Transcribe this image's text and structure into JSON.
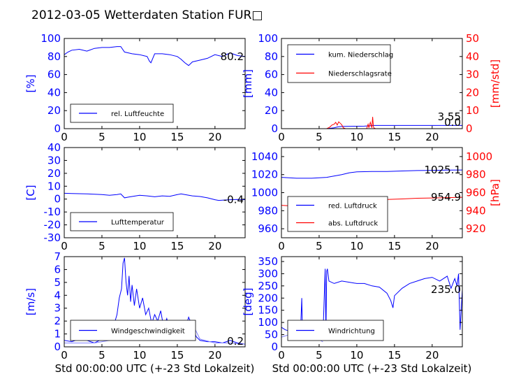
{
  "title": "2012-03-05 Wetterdaten Station FUR□",
  "colors": {
    "primary": "#0000ff",
    "secondary": "#ff0000",
    "secondary_light": "#8080ff",
    "frame": "#000000"
  },
  "chart_data": [
    {
      "id": "humidity",
      "type": "line",
      "xlabel": "",
      "ylabel": "[%]",
      "xlim": [
        0,
        24
      ],
      "ylim": [
        0,
        100
      ],
      "xticks": [
        0,
        5,
        10,
        15,
        20
      ],
      "yticks": [
        0,
        20,
        40,
        60,
        80,
        100
      ],
      "last_value_label": "80.2",
      "legend_position": "lower-left",
      "series": [
        {
          "name": "rel. Luftfeuchte",
          "color": "#0000ff",
          "x": [
            0,
            0.5,
            1,
            2,
            3,
            4,
            5,
            6,
            7,
            7.5,
            8,
            8.5,
            9,
            10,
            10.5,
            11,
            11.3,
            11.5,
            12,
            13,
            14,
            15,
            15.5,
            16,
            16.5,
            17,
            18,
            19,
            20,
            21,
            22,
            23,
            24
          ],
          "y": [
            82,
            85,
            87,
            88,
            86,
            89,
            90,
            90,
            91,
            91,
            85,
            84,
            83,
            82,
            81,
            80,
            75,
            73,
            83,
            83,
            82,
            80,
            77,
            73,
            70,
            74,
            76,
            78,
            82,
            80,
            84,
            81,
            80
          ]
        }
      ]
    },
    {
      "id": "precipitation",
      "type": "line",
      "xlabel": "",
      "ylabel": "[mm]",
      "y2label": "[mm/std]",
      "xlim": [
        0,
        24
      ],
      "ylim": [
        0,
        100
      ],
      "y2lim": [
        0,
        50
      ],
      "xticks": [
        0,
        5,
        10,
        15,
        20
      ],
      "yticks": [
        0,
        20,
        40,
        60,
        80,
        100
      ],
      "y2ticks": [
        0,
        10,
        20,
        30,
        40,
        50
      ],
      "last_value_labels": [
        "3.55",
        "0.0"
      ],
      "legend_position": "upper-left",
      "series": [
        {
          "name": "kum. Niederschlag",
          "color": "#0000ff",
          "axis": "left",
          "x": [
            0,
            6,
            7,
            7.5,
            8,
            11,
            11.7,
            12.2,
            24
          ],
          "y": [
            0,
            0,
            1,
            2,
            2.5,
            2.8,
            3.2,
            3.55,
            3.55
          ]
        },
        {
          "name": "Niederschlagsrate",
          "color": "#ff0000",
          "axis": "right",
          "x": [
            0,
            6.0,
            6.4,
            6.7,
            7.0,
            7.2,
            7.4,
            7.6,
            7.8,
            8.0,
            8.2,
            8.5,
            11.3,
            11.5,
            11.6,
            11.8,
            12.0,
            12.1,
            12.2,
            12.3,
            12.5,
            24
          ],
          "y": [
            0,
            0,
            0.8,
            2.0,
            2.5,
            3.5,
            2.0,
            3.8,
            3.0,
            2.2,
            0.5,
            0,
            0,
            2.5,
            0.5,
            3.5,
            0.5,
            6.5,
            1.0,
            0.3,
            0,
            0
          ]
        }
      ]
    },
    {
      "id": "temperature",
      "type": "line",
      "xlabel": "",
      "ylabel": "[C]",
      "xlim": [
        0,
        24
      ],
      "ylim": [
        -30,
        40
      ],
      "xticks": [
        0,
        5,
        10,
        15,
        20
      ],
      "yticks": [
        -30,
        -20,
        -10,
        0,
        10,
        20,
        30,
        40
      ],
      "last_value_label": "-0.4",
      "legend_position": "lower-left",
      "series": [
        {
          "name": "Lufttemperatur",
          "color": "#0000ff",
          "x": [
            0,
            1,
            2,
            3,
            4,
            5,
            6,
            7,
            7.5,
            8,
            8.5,
            9,
            10,
            11,
            12,
            13,
            14,
            15,
            15.5,
            16,
            17,
            18,
            19,
            20,
            20.5,
            21,
            22,
            23,
            24
          ],
          "y": [
            4.5,
            4.3,
            4.2,
            4.0,
            3.8,
            3.5,
            3.0,
            3.5,
            4.0,
            1.0,
            1.5,
            2.0,
            3.0,
            2.5,
            1.8,
            2.5,
            2.2,
            3.5,
            4.0,
            3.5,
            2.5,
            2.0,
            1.0,
            -0.5,
            -1.0,
            -0.8,
            -0.5,
            -0.3,
            -0.4
          ]
        }
      ]
    },
    {
      "id": "pressure",
      "type": "line",
      "xlabel": "",
      "ylabel": "",
      "y2label": "[hPa]",
      "xlim": [
        0,
        24
      ],
      "ylim": [
        950,
        1050
      ],
      "y2lim": [
        910,
        1010
      ],
      "xticks": [
        0,
        5,
        10,
        15,
        20
      ],
      "yticks": [
        960,
        980,
        1000,
        1020,
        1040
      ],
      "y2ticks": [
        920,
        940,
        960,
        980,
        1000
      ],
      "last_value_labels": [
        "1025.1",
        "954.9"
      ],
      "legend_position": "lower-left",
      "series": [
        {
          "name": "red. Luftdruck",
          "color": "#0000ff",
          "axis": "left",
          "x": [
            0,
            2,
            4,
            6,
            8,
            9,
            10,
            12,
            14,
            16,
            18,
            20,
            22,
            24
          ],
          "y": [
            1017,
            1016,
            1016,
            1017,
            1020,
            1022,
            1023,
            1023.5,
            1023.5,
            1024,
            1024.5,
            1024.7,
            1025,
            1025.1
          ]
        },
        {
          "name": "abs. Luftdruck",
          "color": "#ff0000",
          "axis": "right",
          "x": [
            0,
            2,
            4,
            6,
            8,
            9,
            10,
            12,
            14,
            16,
            18,
            20,
            22,
            24
          ],
          "y": [
            946,
            945,
            945,
            946,
            949,
            951,
            952,
            952.5,
            952.5,
            953,
            953.8,
            954.1,
            954.5,
            954.9
          ]
        }
      ]
    },
    {
      "id": "windspeed",
      "type": "line",
      "xlabel": "Std 00:00:00 UTC (+-23 Std Lokalzeit)",
      "ylabel": "[m/s]",
      "xlim": [
        0,
        24
      ],
      "ylim": [
        0,
        7
      ],
      "xticks": [
        0,
        5,
        10,
        15,
        20
      ],
      "yticks": [
        0,
        1,
        2,
        3,
        4,
        5,
        6,
        7
      ],
      "last_value_label": "0.2",
      "legend_position": "lower-center",
      "series": [
        {
          "name": "Windgeschwindigkeit",
          "color": "#0000ff",
          "x": [
            0,
            1,
            2,
            3,
            4,
            5,
            6,
            6.5,
            7,
            7.3,
            7.6,
            7.8,
            8.0,
            8.2,
            8.4,
            8.6,
            8.8,
            9.0,
            9.3,
            9.6,
            10,
            10.4,
            10.8,
            11.2,
            11.6,
            12,
            12.4,
            12.8,
            13.2,
            13.6,
            14,
            14.5,
            15,
            15.5,
            16,
            16.5,
            17,
            17.5,
            18,
            19,
            20,
            21,
            22,
            23,
            24
          ],
          "y": [
            0.5,
            0.4,
            0.6,
            0.5,
            0.3,
            0.6,
            0.9,
            1.5,
            2.5,
            3.8,
            4.5,
            6.5,
            6.9,
            5.0,
            4.0,
            5.5,
            3.5,
            4.8,
            3.2,
            4.5,
            3.0,
            3.8,
            2.5,
            3.0,
            1.8,
            2.5,
            2.0,
            2.8,
            1.5,
            2.2,
            1.2,
            1.8,
            1.5,
            2.0,
            1.3,
            2.3,
            1.6,
            0.8,
            0.5,
            0.4,
            0.4,
            0.3,
            0.5,
            0.3,
            0.2
          ]
        },
        {
          "name": "",
          "color": "#8080ff",
          "x": [
            0,
            2,
            4,
            6,
            7,
            8,
            9,
            10,
            11,
            12,
            13,
            14,
            15,
            16,
            17,
            18,
            20,
            22,
            24
          ],
          "y": [
            0.3,
            0.3,
            0.3,
            0.5,
            0.7,
            0.9,
            1.0,
            1.1,
            1.2,
            1.0,
            1.1,
            1.2,
            1.1,
            1.6,
            1.8,
            0.6,
            0.3,
            0.3,
            0.2
          ]
        }
      ]
    },
    {
      "id": "winddirection",
      "type": "line",
      "xlabel": "Std 00:00:00 UTC (+-23 Std Lokalzeit)",
      "ylabel": "[deg]",
      "xlim": [
        0,
        24
      ],
      "ylim": [
        0,
        370
      ],
      "xticks": [
        0,
        5,
        10,
        15,
        20
      ],
      "yticks": [
        0,
        50,
        100,
        150,
        200,
        250,
        300,
        350
      ],
      "last_value_label": "235.0",
      "legend_position": "lower-center",
      "series": [
        {
          "name": "Windrichtung",
          "color": "#0000ff",
          "x": [
            0,
            0.5,
            1,
            1.5,
            2,
            2.5,
            2.7,
            2.8,
            3.0,
            3.5,
            4,
            4.5,
            5,
            5.3,
            5.5,
            5.8,
            5.9,
            6.0,
            6.1,
            6.3,
            7,
            8,
            9,
            10,
            11,
            12,
            13,
            14,
            14.5,
            14.8,
            15,
            16,
            17,
            18,
            19,
            20,
            21,
            22,
            22.5,
            23,
            23.3,
            23.5,
            23.7,
            24
          ],
          "y": [
            80,
            70,
            65,
            60,
            55,
            40,
            200,
            50,
            60,
            65,
            60,
            55,
            50,
            60,
            40,
            320,
            50,
            310,
            320,
            270,
            260,
            270,
            265,
            260,
            260,
            250,
            245,
            220,
            190,
            160,
            210,
            240,
            260,
            270,
            280,
            285,
            270,
            290,
            240,
            280,
            250,
            300,
            70,
            235
          ]
        },
        {
          "name": "",
          "color": "#8080ff",
          "x": [
            0,
            1,
            2,
            3,
            4,
            5,
            5.5
          ],
          "y": [
            40,
            50,
            45,
            40,
            55,
            30,
            20
          ]
        }
      ]
    }
  ]
}
